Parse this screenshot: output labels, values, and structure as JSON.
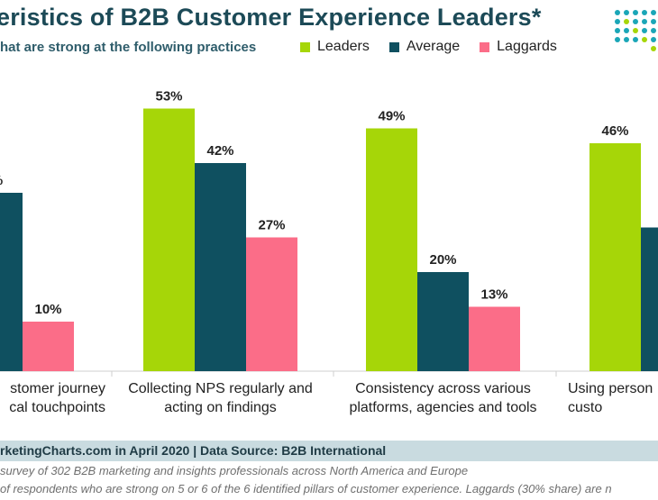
{
  "title": "eristics of B2B Customer Experience Leaders*",
  "subtitle": "hat are strong at the following practices",
  "legend": [
    {
      "name": "Leaders",
      "color": "#a6d608"
    },
    {
      "name": "Average",
      "color": "#0f5060"
    },
    {
      "name": "Laggards",
      "color": "#fb6d88"
    }
  ],
  "footer": {
    "source": "rketingCharts.com in April 2020 | Data Source: B2B International",
    "note1": "survey of 302 B2B marketing and insights professionals across North America and Europe",
    "note2": "of respondents who are strong on 5 or 6 of the 6 identified pillars of customer experience. Laggards (30% share) are n"
  },
  "chart_data": {
    "type": "bar",
    "title": "eristics of B2B Customer Experience Leaders*",
    "subtitle": "hat are strong at the following practices",
    "ylim": [
      0,
      60
    ],
    "grid": false,
    "legend_position": "top",
    "categories": [
      {
        "lines": [
          "stomer journey",
          "cal touchpoints"
        ]
      },
      {
        "lines": [
          "Collecting NPS regularly and",
          "acting on findings"
        ]
      },
      {
        "lines": [
          "Consistency across various",
          "platforms, agencies and tools"
        ]
      },
      {
        "lines": [
          "Using person",
          "custo"
        ]
      }
    ],
    "series": [
      {
        "name": "Leaders",
        "color": "#a6d608",
        "values": [
          null,
          53,
          49,
          46
        ],
        "labels": [
          "",
          "53%",
          "49%",
          "46%"
        ]
      },
      {
        "name": "Average",
        "color": "#0f5060",
        "values": [
          36,
          42,
          20,
          29
        ],
        "labels": [
          "%",
          "42%",
          "20%",
          "2"
        ]
      },
      {
        "name": "Laggards",
        "color": "#fb6d88",
        "values": [
          10,
          27,
          13,
          null
        ],
        "labels": [
          "10%",
          "27%",
          "13%",
          ""
        ]
      }
    ]
  }
}
